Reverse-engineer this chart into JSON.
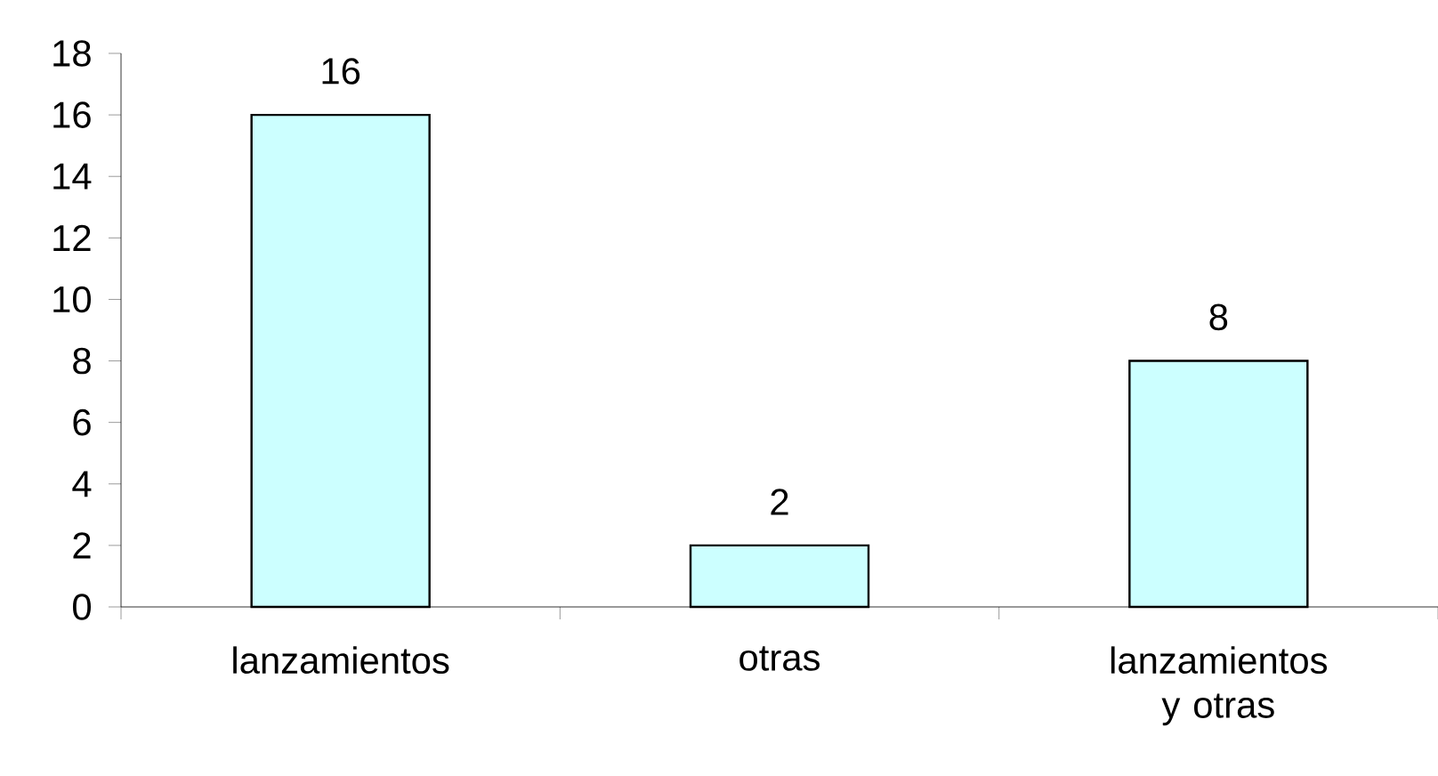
{
  "chart_data": {
    "type": "bar",
    "categories": [
      "lanzamientos",
      "otras",
      "lanzamientos y otras"
    ],
    "values": [
      16,
      2,
      8
    ],
    "color": "#ccffff",
    "ylim": [
      0,
      18
    ],
    "yticks": [
      0,
      2,
      4,
      6,
      8,
      10,
      12,
      14,
      16,
      18
    ],
    "data_labels": true
  }
}
